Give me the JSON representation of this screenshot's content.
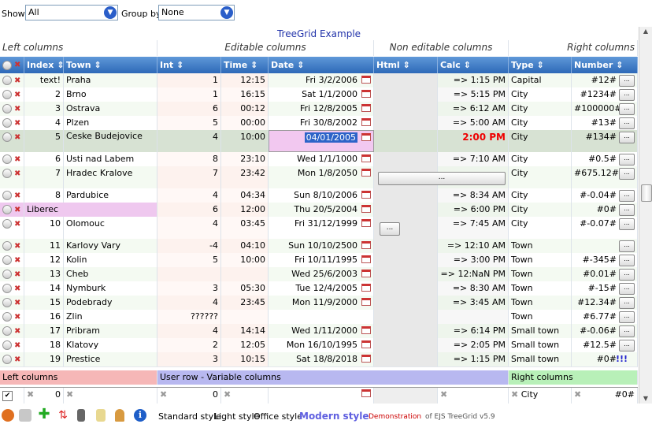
{
  "toolbar": {
    "show_label": "Show",
    "show_value": "All",
    "group_label": "Group by",
    "group_value": "None"
  },
  "title": "TreeGrid Example",
  "sections": {
    "left": "Left columns",
    "editable": "Editable columns",
    "noneditable": "Non editable columns",
    "right": "Right columns"
  },
  "columns": [
    "Index",
    "Town",
    "Int",
    "Time",
    "Date",
    "Html",
    "Calc",
    "Type",
    "Number"
  ],
  "rows": [
    {
      "index": "text!",
      "town": "Praha",
      "int": "1",
      "time": "12:15",
      "date": "Fri 3/2/2006",
      "calc": "=> 1:15 PM",
      "type": "Capital",
      "number": "#12#"
    },
    {
      "index": "2",
      "town": "Brno",
      "int": "1",
      "time": "16:15",
      "date": "Sat 1/1/2000",
      "calc": "=> 5:15 PM",
      "type": "City",
      "number": "#1234#"
    },
    {
      "index": "3",
      "town": "Ostrava",
      "int": "6",
      "time": "00:12",
      "date": "Fri 12/8/2005",
      "calc": "=> 6:12 AM",
      "type": "City",
      "number": "#100000#"
    },
    {
      "index": "4",
      "town": "Plzen",
      "int": "5",
      "time": "00:00",
      "date": "Fri 30/8/2002",
      "calc": "=> 5:00 AM",
      "type": "City",
      "number": "#13#"
    },
    {
      "index": "5",
      "town": "Ceske Budejovice",
      "int": "4",
      "time": "10:00",
      "date": "04/01/2005",
      "calc": "2:00 PM",
      "type": "City",
      "number": "#134#"
    },
    {
      "index": "6",
      "town": "Usti nad Labem",
      "int": "8",
      "time": "23:10",
      "date": "Wed 1/1/1000",
      "calc": "=> 7:10 AM",
      "type": "City",
      "number": "#0.5#"
    },
    {
      "index": "7",
      "town": "Hradec Kralove",
      "int": "7",
      "time": "23:42",
      "date": "Mon 1/8/2050",
      "calc": "",
      "type": "City",
      "number": "#675.12#"
    },
    {
      "index": "8",
      "town": "Pardubice",
      "int": "4",
      "time": "04:34",
      "date": "Sun 8/10/2006",
      "calc": "=> 8:34 AM",
      "type": "City",
      "number": "#-0.04#"
    },
    {
      "index": "",
      "town": "Liberec",
      "int": "6",
      "time": "12:00",
      "date": "Thu 20/5/2004",
      "calc": "=> 6:00 PM",
      "type": "City",
      "number": "#0#"
    },
    {
      "index": "10",
      "town": "Olomouc",
      "int": "4",
      "time": "03:45",
      "date": "Fri 31/12/1999",
      "calc": "=> 7:45 AM",
      "type": "City",
      "number": "#-0.07#"
    },
    {
      "index": "11",
      "town": "Karlovy Vary",
      "int": "-4",
      "time": "04:10",
      "date": "Sun 10/10/2500",
      "calc": "=> 12:10 AM",
      "type": "Town",
      "number": ""
    },
    {
      "index": "12",
      "town": "Kolin",
      "int": "5",
      "time": "10:00",
      "date": "Fri 10/11/1995",
      "calc": "=> 3:00 PM",
      "type": "Town",
      "number": "#-345#"
    },
    {
      "index": "13",
      "town": "Cheb",
      "int": "",
      "time": "",
      "date": "Wed 25/6/2003",
      "calc": "=> 12:NaN PM",
      "type": "Town",
      "number": "#0.01#"
    },
    {
      "index": "14",
      "town": "Nymburk",
      "int": "3",
      "time": "05:30",
      "date": "Tue 12/4/2005",
      "calc": "=> 8:30 AM",
      "type": "Town",
      "number": "#-15#"
    },
    {
      "index": "15",
      "town": "Podebrady",
      "int": "4",
      "time": "23:45",
      "date": "Mon 11/9/2000",
      "calc": "=> 3:45 AM",
      "type": "Town",
      "number": "#12.34#"
    },
    {
      "index": "16",
      "town": "Zlin",
      "int": "??????",
      "time": "",
      "date": "",
      "calc": "",
      "type": "Town",
      "number": "#6.77#"
    },
    {
      "index": "17",
      "town": "Pribram",
      "int": "4",
      "time": "14:14",
      "date": "Wed 1/11/2000",
      "calc": "=> 6:14 PM",
      "type": "Small town",
      "number": "#-0.06#"
    },
    {
      "index": "18",
      "town": "Klatovy",
      "int": "2",
      "time": "12:05",
      "date": "Mon 16/10/1995",
      "calc": "=> 2:05 PM",
      "type": "Small town",
      "number": "#12.5#"
    },
    {
      "index": "19",
      "town": "Prestice",
      "int": "3",
      "time": "10:15",
      "date": "Sat 18/8/2018",
      "calc": "=> 1:15 PM",
      "type": "Small town",
      "number": "#0#"
    }
  ],
  "extra": {
    "marks": "!!!",
    "button_dots": "..."
  },
  "userrow": {
    "left": "Left columns",
    "middle": "User row - Variable columns",
    "right": "Right columns"
  },
  "filter": {
    "index": "0",
    "int": "0",
    "type": "City",
    "number": "#0#"
  },
  "footer": {
    "standard": "Standard style",
    "light": "Light style",
    "office": "Office style",
    "modern": "Modern style",
    "demo": "Demonstration",
    "ejs": "of EJS TreeGrid v5.9"
  }
}
